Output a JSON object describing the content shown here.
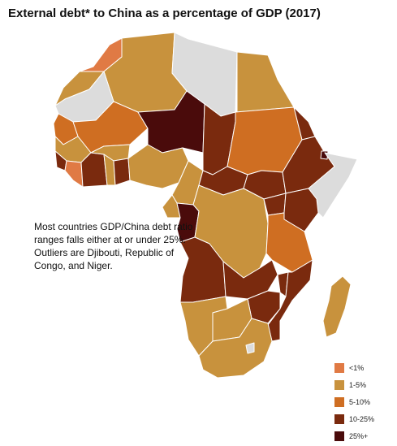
{
  "title": "External debt* to China as a percentage of GDP (2017)",
  "annotation": "Most countries GDP/China debt ratio ranges falls either at or under 25%. Outliers are Djibouti, Republic of Congo, and Niger.",
  "colors": {
    "no_data": "#dcdcdc",
    "border": "#ffffff",
    "lt1": "#e07a44",
    "1to5": "#c8923d",
    "5to10": "#cf6e22",
    "10to25": "#7a2a0e",
    "25plus": "#4a0b0b"
  },
  "legend": [
    {
      "key": "lt1",
      "label": "<1%"
    },
    {
      "key": "1to5",
      "label": "1-5%"
    },
    {
      "key": "5to10",
      "label": "5-10%"
    },
    {
      "key": "10to25",
      "label": "10-25%"
    },
    {
      "key": "25plus",
      "label": "25%+"
    }
  ]
}
